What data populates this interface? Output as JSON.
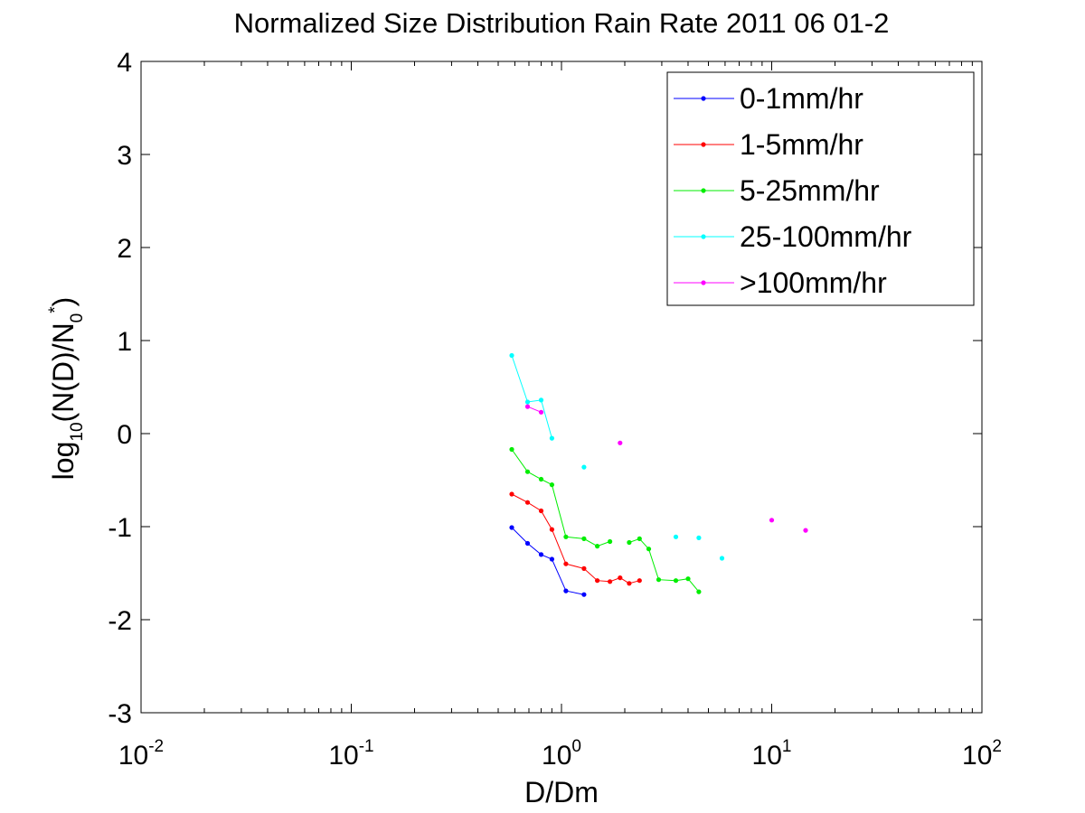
{
  "chart_data": {
    "type": "line",
    "title": "Normalized Size Distribution Rain Rate 2011 06 01-2",
    "xlabel": "D/Dm",
    "ylabel": {
      "base": "log",
      "base_sub": "10",
      "main": "(N(D)/N",
      "sub": "0",
      "sup": "*",
      "close": ")"
    },
    "xscale": "log",
    "xlim": [
      0.01,
      100
    ],
    "ylim": [
      -3,
      4
    ],
    "xticks": [
      {
        "value": 0.01,
        "base": "10",
        "exp": "-2"
      },
      {
        "value": 0.1,
        "base": "10",
        "exp": "-1"
      },
      {
        "value": 1,
        "base": "10",
        "exp": "0"
      },
      {
        "value": 10,
        "base": "10",
        "exp": "1"
      },
      {
        "value": 100,
        "base": "10",
        "exp": "2"
      }
    ],
    "yticks": [
      {
        "value": -3,
        "label": "-3"
      },
      {
        "value": -2,
        "label": "-2"
      },
      {
        "value": -1,
        "label": "-1"
      },
      {
        "value": 0,
        "label": "0"
      },
      {
        "value": 1,
        "label": "1"
      },
      {
        "value": 2,
        "label": "2"
      },
      {
        "value": 3,
        "label": "3"
      },
      {
        "value": 4,
        "label": "4"
      }
    ],
    "grid": false,
    "legend_position": "top-right",
    "series": [
      {
        "name": "0-1mm/hr",
        "color": "#0000ff",
        "segments": [
          [
            [
              0.58,
              -1.01
            ],
            [
              0.69,
              -1.18
            ],
            [
              0.8,
              -1.3
            ],
            [
              0.9,
              -1.35
            ],
            [
              1.05,
              -1.69
            ],
            [
              1.28,
              -1.73
            ]
          ]
        ]
      },
      {
        "name": "1-5mm/hr",
        "color": "#ff0000",
        "segments": [
          [
            [
              0.58,
              -0.65
            ],
            [
              0.69,
              -0.74
            ],
            [
              0.8,
              -0.83
            ],
            [
              0.9,
              -1.03
            ],
            [
              1.05,
              -1.4
            ],
            [
              1.28,
              -1.45
            ],
            [
              1.48,
              -1.58
            ],
            [
              1.7,
              -1.59
            ],
            [
              1.9,
              -1.55
            ],
            [
              2.1,
              -1.61
            ],
            [
              2.35,
              -1.58
            ]
          ]
        ]
      },
      {
        "name": "5-25mm/hr",
        "color": "#00ee00",
        "segments": [
          [
            [
              0.58,
              -0.17
            ],
            [
              0.69,
              -0.41
            ],
            [
              0.8,
              -0.49
            ],
            [
              0.9,
              -0.55
            ],
            [
              1.05,
              -1.11
            ],
            [
              1.28,
              -1.13
            ],
            [
              1.48,
              -1.21
            ],
            [
              1.7,
              -1.16
            ]
          ],
          [
            [
              2.1,
              -1.17
            ],
            [
              2.35,
              -1.13
            ],
            [
              2.6,
              -1.24
            ],
            [
              2.9,
              -1.57
            ],
            [
              3.5,
              -1.58
            ],
            [
              4.0,
              -1.56
            ],
            [
              4.5,
              -1.7
            ]
          ]
        ]
      },
      {
        "name": "25-100mm/hr",
        "color": "#00ffff",
        "segments": [
          [
            [
              0.58,
              0.84
            ],
            [
              0.69,
              0.34
            ],
            [
              0.8,
              0.36
            ],
            [
              0.9,
              -0.05
            ]
          ],
          [
            [
              1.28,
              -0.36
            ]
          ],
          [
            [
              3.5,
              -1.11
            ]
          ],
          [
            [
              4.5,
              -1.12
            ]
          ],
          [
            [
              5.8,
              -1.34
            ]
          ]
        ]
      },
      {
        "name": ">100mm/hr",
        "color": "#ff00ff",
        "segments": [
          [
            [
              0.69,
              0.29
            ],
            [
              0.8,
              0.23
            ]
          ],
          [
            [
              1.9,
              -0.1
            ]
          ],
          [
            [
              10,
              -0.93
            ]
          ],
          [
            [
              14.5,
              -1.04
            ]
          ]
        ]
      }
    ]
  }
}
